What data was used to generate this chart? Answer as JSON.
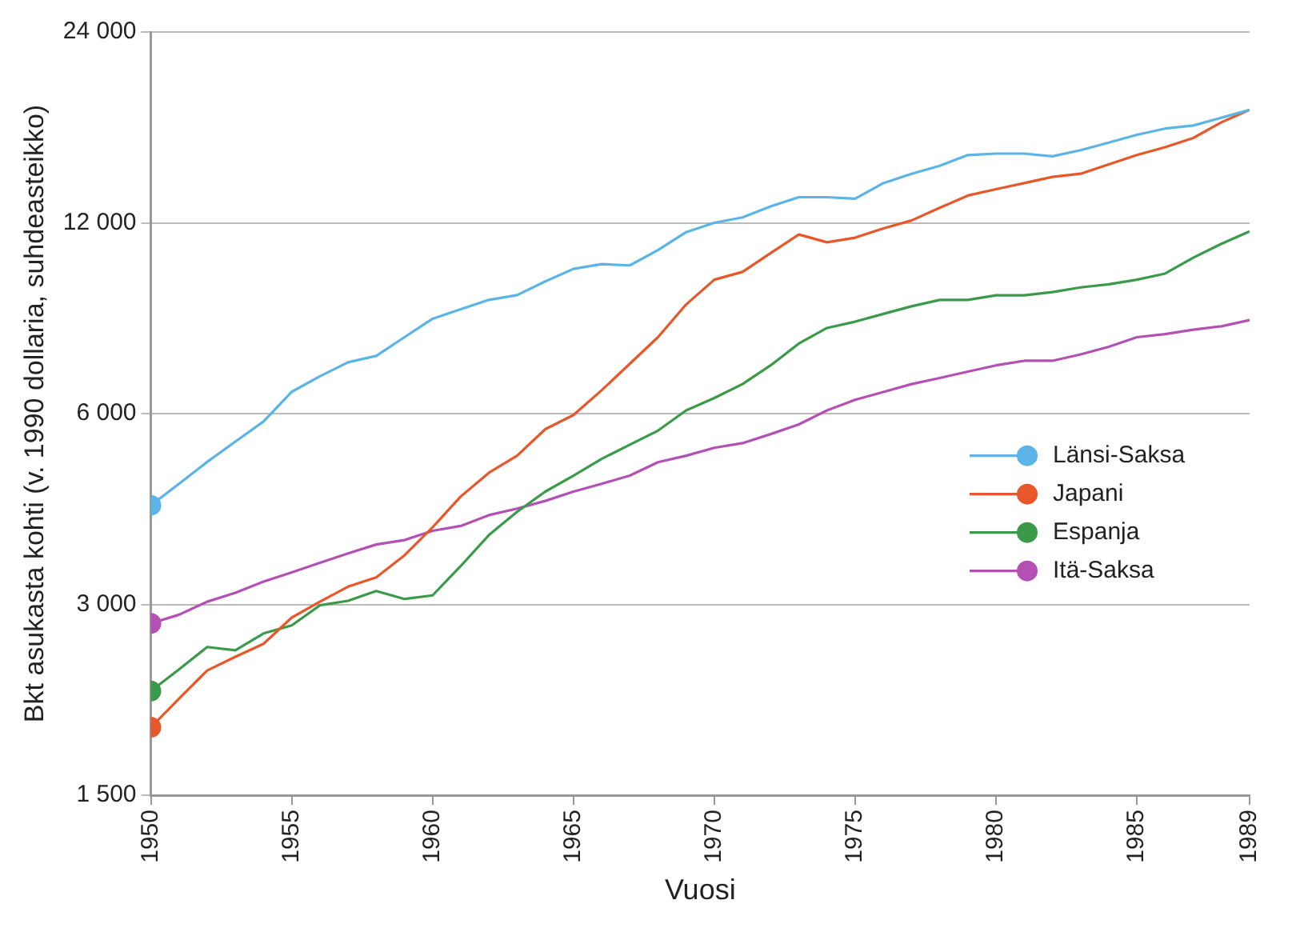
{
  "chart_data": {
    "type": "line",
    "xlabel": "Vuosi",
    "ylabel": "Bkt asukasta kohti (v. 1990 dollaria, suhdeasteikko)",
    "x": [
      1950,
      1951,
      1952,
      1953,
      1954,
      1955,
      1956,
      1957,
      1958,
      1959,
      1960,
      1961,
      1962,
      1963,
      1964,
      1965,
      1966,
      1967,
      1968,
      1969,
      1970,
      1971,
      1972,
      1973,
      1974,
      1975,
      1976,
      1977,
      1978,
      1979,
      1980,
      1981,
      1982,
      1983,
      1984,
      1985,
      1986,
      1987,
      1988,
      1989
    ],
    "series": [
      {
        "name": "Länsi-Saksa",
        "color": "#5ab4e5",
        "values": [
          4300,
          4650,
          5035,
          5420,
          5830,
          6495,
          6872,
          7230,
          7400,
          7920,
          8470,
          8770,
          9070,
          9230,
          9700,
          10150,
          10330,
          10280,
          10870,
          11600,
          12000,
          12240,
          12740,
          13170,
          13170,
          13100,
          13860,
          14340,
          14760,
          15350,
          15430,
          15430,
          15280,
          15620,
          16060,
          16520,
          16900,
          17090,
          17580,
          18090
        ]
      },
      {
        "name": "Japani",
        "color": "#e8572a",
        "values": [
          1920,
          2130,
          2360,
          2480,
          2600,
          2860,
          3030,
          3200,
          3310,
          3585,
          3970,
          4440,
          4840,
          5150,
          5670,
          5970,
          6530,
          7190,
          7920,
          8920,
          9760,
          10040,
          10750,
          11500,
          11180,
          11370,
          11760,
          12100,
          12670,
          13250,
          13560,
          13860,
          14180,
          14340,
          14840,
          15350,
          15790,
          16330,
          17290,
          18090
        ]
      },
      {
        "name": "Espanja",
        "color": "#3a9a4a",
        "values": [
          2190,
          2370,
          2570,
          2540,
          2700,
          2780,
          2990,
          3040,
          3150,
          3060,
          3100,
          3450,
          3860,
          4200,
          4520,
          4790,
          5090,
          5360,
          5640,
          6070,
          6350,
          6680,
          7150,
          7740,
          8190,
          8380,
          8620,
          8860,
          9070,
          9070,
          9220,
          9220,
          9330,
          9490,
          9600,
          9760,
          9980,
          10570,
          11120,
          11630
        ]
      },
      {
        "type": "scatter",
        "color": "#5ab4e5",
        "values": [
          4300,
          null,
          null,
          null,
          null,
          null,
          null,
          null,
          null,
          null,
          null,
          null,
          null,
          null,
          null,
          null,
          null,
          null,
          null,
          null,
          null,
          null,
          null,
          null,
          null,
          null,
          null,
          null,
          null,
          null,
          null,
          null,
          null,
          null,
          null,
          null,
          null,
          null,
          null,
          null
        ]
      },
      {
        "type": "scatter",
        "color": "#e8572a",
        "values": [
          1920,
          null,
          null,
          null,
          null,
          null,
          null,
          null,
          null,
          null,
          null,
          null,
          null,
          null,
          null,
          null,
          null,
          null,
          null,
          null,
          null,
          null,
          null,
          null,
          null,
          null,
          null,
          null,
          null,
          null,
          null,
          null,
          null,
          null,
          null,
          null,
          null,
          null,
          null,
          null
        ]
      },
      {
        "type": "scatter",
        "color": "#3a9a4a",
        "values": [
          2190,
          null,
          null,
          null,
          null,
          null,
          null,
          null,
          null,
          null,
          null,
          null,
          null,
          null,
          null,
          null,
          null,
          null,
          null,
          null,
          null,
          null,
          null,
          null,
          null,
          null,
          null,
          null,
          null,
          null,
          null,
          null,
          null,
          null,
          null,
          null,
          null,
          null,
          null,
          null
        ]
      },
      {
        "type": "scatter",
        "color": "#b450b4",
        "values": [
          2800,
          null,
          null,
          null,
          null,
          null,
          null,
          null,
          null,
          null,
          null,
          null,
          null,
          null,
          null,
          null,
          null,
          null,
          null,
          null,
          null,
          null,
          null,
          null,
          null,
          null,
          null,
          null,
          null,
          null,
          null,
          null,
          null,
          null,
          null,
          null,
          null,
          null,
          null,
          null
        ]
      },
      {
        "name": "Itä-Saksa",
        "color": "#b450b4",
        "values": [
          2800,
          2890,
          3030,
          3130,
          3260,
          3370,
          3490,
          3610,
          3730,
          3790,
          3920,
          3990,
          4150,
          4250,
          4370,
          4520,
          4650,
          4790,
          5030,
          5150,
          5300,
          5390,
          5570,
          5770,
          6070,
          6310,
          6490,
          6680,
          6830,
          6990,
          7150,
          7270,
          7270,
          7440,
          7650,
          7920,
          8010,
          8140,
          8240,
          8430
        ]
      }
    ],
    "xlim": [
      1950,
      1989
    ],
    "xticks": [
      1950,
      1955,
      1960,
      1965,
      1970,
      1975,
      1980,
      1985,
      1989
    ],
    "ylim": [
      1500,
      24000
    ],
    "yticks": [
      {
        "value": 1500,
        "label": "1 500"
      },
      {
        "value": 3000,
        "label": "3 000"
      },
      {
        "value": 6000,
        "label": "6 000"
      },
      {
        "value": 12000,
        "label": "12 000"
      },
      {
        "value": 24000,
        "label": "24 000"
      }
    ],
    "log": "y",
    "grid": "y",
    "legend": "right"
  }
}
